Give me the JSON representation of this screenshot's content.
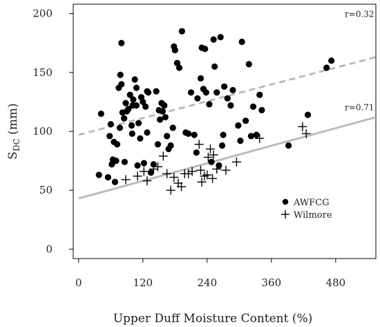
{
  "chart_data": {
    "type": "scatter",
    "xlabel": "Upper Duff Moisture Content (%)",
    "ylabel_main": "S",
    "ylabel_sub": "DC",
    "ylabel_unit": " (mm)",
    "xlim": [
      -10,
      555
    ],
    "ylim": [
      -8,
      208
    ],
    "xticks": [
      0,
      120,
      240,
      360,
      480
    ],
    "yticks": [
      0,
      50,
      100,
      150,
      200
    ],
    "grid": false,
    "legend_position": "lower-right",
    "series": [
      {
        "name": "AWFCG",
        "marker": "circle",
        "color": "#000000",
        "points": [
          [
            38,
            63
          ],
          [
            42,
            115
          ],
          [
            55,
            61
          ],
          [
            58,
            96
          ],
          [
            60,
            106
          ],
          [
            62,
            72
          ],
          [
            64,
            76
          ],
          [
            66,
            91
          ],
          [
            68,
            57
          ],
          [
            70,
            75
          ],
          [
            72,
            89
          ],
          [
            75,
            137
          ],
          [
            77,
            103
          ],
          [
            78,
            148
          ],
          [
            80,
            140
          ],
          [
            80,
            175
          ],
          [
            82,
            116
          ],
          [
            85,
            111
          ],
          [
            86,
            74
          ],
          [
            88,
            124
          ],
          [
            90,
            117
          ],
          [
            93,
            119
          ],
          [
            96,
            131
          ],
          [
            99,
            105
          ],
          [
            100,
            98
          ],
          [
            101,
            122
          ],
          [
            102,
            127
          ],
          [
            105,
            144
          ],
          [
            108,
            137
          ],
          [
            108,
            122
          ],
          [
            110,
            71
          ],
          [
            112,
            107
          ],
          [
            115,
            94
          ],
          [
            117,
            129
          ],
          [
            120,
            125
          ],
          [
            122,
            73
          ],
          [
            125,
            121
          ],
          [
            128,
            134
          ],
          [
            128,
            99
          ],
          [
            130,
            133
          ],
          [
            135,
            65
          ],
          [
            140,
            72
          ],
          [
            145,
            134
          ],
          [
            148,
            89
          ],
          [
            150,
            118
          ],
          [
            152,
            110
          ],
          [
            155,
            124
          ],
          [
            157,
            117
          ],
          [
            160,
            122
          ],
          [
            162,
            112
          ],
          [
            165,
            96
          ],
          [
            168,
            85
          ],
          [
            172,
            88
          ],
          [
            176,
            103
          ],
          [
            178,
            172
          ],
          [
            180,
            169
          ],
          [
            184,
            158
          ],
          [
            188,
            154
          ],
          [
            193,
            185
          ],
          [
            200,
            99
          ],
          [
            205,
            98
          ],
          [
            210,
            133
          ],
          [
            216,
            97
          ],
          [
            220,
            82
          ],
          [
            222,
            128
          ],
          [
            228,
            145
          ],
          [
            230,
            171
          ],
          [
            233,
            136
          ],
          [
            236,
            170
          ],
          [
            238,
            133
          ],
          [
            244,
            123
          ],
          [
            248,
            74
          ],
          [
            252,
            178
          ],
          [
            254,
            155
          ],
          [
            258,
            133
          ],
          [
            262,
            71
          ],
          [
            265,
            180
          ],
          [
            268,
            88
          ],
          [
            270,
            97
          ],
          [
            272,
            138
          ],
          [
            278,
            128
          ],
          [
            284,
            122
          ],
          [
            288,
            135
          ],
          [
            298,
            105
          ],
          [
            302,
            92
          ],
          [
            305,
            176
          ],
          [
            312,
            109
          ],
          [
            318,
            157
          ],
          [
            322,
            96
          ],
          [
            326,
            121
          ],
          [
            332,
            97
          ],
          [
            338,
            131
          ],
          [
            342,
            118
          ],
          [
            392,
            88
          ],
          [
            428,
            114
          ],
          [
            463,
            154
          ],
          [
            472,
            160
          ]
        ]
      },
      {
        "name": "Wilmore",
        "marker": "plus",
        "color": "#000000",
        "points": [
          [
            88,
            59
          ],
          [
            110,
            62
          ],
          [
            122,
            66
          ],
          [
            128,
            58
          ],
          [
            140,
            68
          ],
          [
            148,
            70
          ],
          [
            158,
            79
          ],
          [
            165,
            64
          ],
          [
            172,
            50
          ],
          [
            178,
            61
          ],
          [
            186,
            56
          ],
          [
            192,
            53
          ],
          [
            198,
            64
          ],
          [
            205,
            64
          ],
          [
            212,
            66
          ],
          [
            225,
            89
          ],
          [
            228,
            67
          ],
          [
            230,
            57
          ],
          [
            235,
            62
          ],
          [
            240,
            63
          ],
          [
            242,
            78
          ],
          [
            246,
            85
          ],
          [
            250,
            60
          ],
          [
            252,
            80
          ],
          [
            258,
            68
          ],
          [
            275,
            67
          ],
          [
            295,
            74
          ],
          [
            338,
            94
          ],
          [
            418,
            104
          ],
          [
            425,
            98
          ]
        ]
      }
    ],
    "trendlines": [
      {
        "name": "AWFCG fit",
        "x": [
          0,
          555
        ],
        "y": [
          97,
          163
        ],
        "style": "dashed",
        "color": "#bbbbbb",
        "label": "r=0.32",
        "label_at": [
          497,
          197
        ]
      },
      {
        "name": "Wilmore fit",
        "x": [
          0,
          555
        ],
        "y": [
          43,
          112
        ],
        "style": "solid",
        "color": "#bbbbbb",
        "label": "r=0.71",
        "label_at": [
          497,
          118
        ]
      }
    ]
  }
}
